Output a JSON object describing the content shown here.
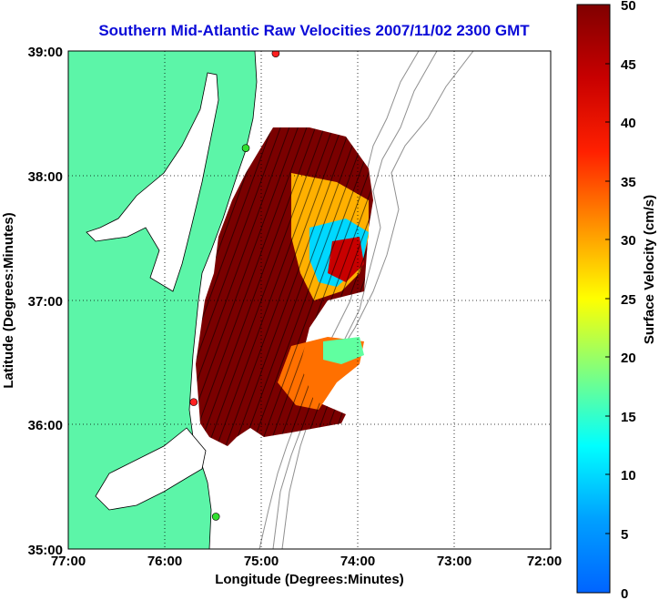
{
  "title": "Southern Mid-Atlantic Raw Velocities 2007/11/02 2300 GMT",
  "map": {
    "xlabel": "Longitude (Degrees:Minutes)",
    "ylabel": "Latitude (Degrees:Minutes)",
    "x_ticks": [
      "77:00",
      "76:00",
      "75:00",
      "74:00",
      "73:00",
      "72:00"
    ],
    "y_ticks": [
      "39:00",
      "38:00",
      "37:00",
      "36:00",
      "35:00"
    ],
    "lon_range": [
      -77,
      -72
    ],
    "lat_range": [
      35,
      39
    ],
    "grid": "dotted",
    "land_color": "#5cf5a8",
    "water_color": "#ffffff",
    "bathymetry_color": "#909090"
  },
  "stations": [
    {
      "lon": -74.85,
      "lat": 38.98,
      "color": "#ff2020"
    },
    {
      "lon": -75.16,
      "lat": 38.22,
      "color": "#30e030"
    },
    {
      "lon": -75.7,
      "lat": 36.18,
      "color": "#ff2020"
    },
    {
      "lon": -75.47,
      "lat": 35.26,
      "color": "#30e030"
    }
  ],
  "colorbar": {
    "label": "Surface Velocity (cm/s)",
    "ticks": [
      "0",
      "5",
      "10",
      "15",
      "20",
      "25",
      "30",
      "35",
      "40",
      "45",
      "50"
    ],
    "range": [
      0,
      50
    ],
    "colormap": "jet"
  }
}
